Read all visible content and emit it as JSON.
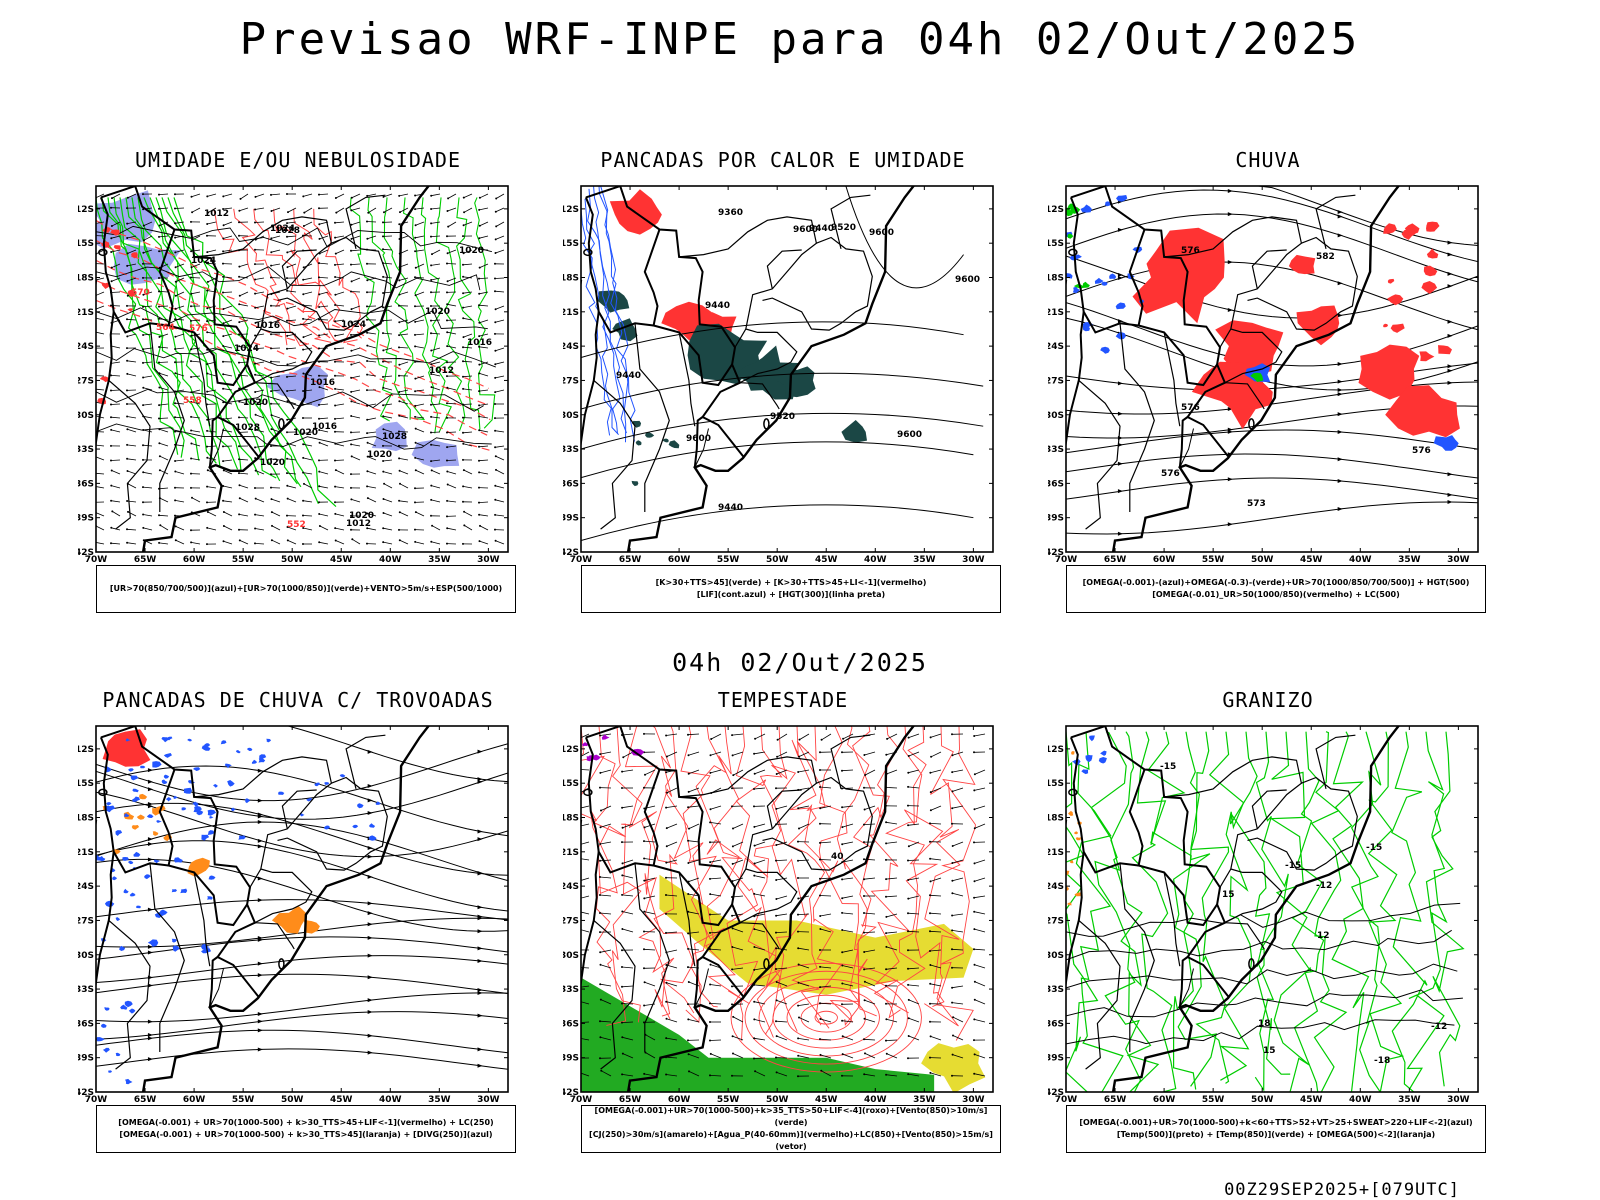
{
  "header": {
    "title": "Previsao WRF-INPE  para 04h 02/Out/2025"
  },
  "mid_label": "04h 02/Out/2025",
  "footer": "00Z29SEP2025+[079UTC]",
  "axes": {
    "lat_labels": [
      "12S",
      "15S",
      "18S",
      "21S",
      "24S",
      "27S",
      "30S",
      "33S",
      "36S",
      "39S",
      "42S"
    ],
    "lon_labels": [
      "70W",
      "65W",
      "60W",
      "55W",
      "50W",
      "45W",
      "40W",
      "35W",
      "30W"
    ]
  },
  "colors": {
    "humidity_blue": "#9fa6f0",
    "humidity_green": "#00cc00",
    "red_fill": "#ff3333",
    "dark_teal": "#1b4745",
    "blue_contour": "#2255ff",
    "orange": "#ff8c1a",
    "yellow": "#e6dc32",
    "green_fill": "#22aa22",
    "purple": "#aa00cc"
  },
  "panels": [
    {
      "id": "umidade",
      "title": "UMIDADE E/OU NEBULOSIDADE",
      "legend": [
        "[UR>70(850/700/500)](azul)+[UR>70(1000/850)](verde)+VENTO>5m/s+ESP(500/1000)"
      ],
      "contour_labels": [
        "1012",
        "1016",
        "1020",
        "1020",
        "1012",
        "1016",
        "1020",
        "1020",
        "1012",
        "1016",
        "1024",
        "1020",
        "1024",
        "1028",
        "1024",
        "1020",
        "1020",
        "1016",
        "1024",
        "1028",
        "1028",
        "576",
        "570",
        "564",
        "558",
        "552"
      ]
    },
    {
      "id": "pancadas_calor",
      "title": "PANCADAS POR CALOR E UMIDADE",
      "legend": [
        "[K>30+TTS>45](verde) + [K>30+TTS>45+LI<-1](vermelho)",
        "[LIF](cont.azul) + [HGT(300)](linha preta)"
      ],
      "contour_labels": [
        "9520",
        "9600",
        "9600",
        "9600",
        "9600",
        "9600",
        "9520",
        "9440",
        "9440",
        "9440",
        "9440",
        "9360"
      ]
    },
    {
      "id": "chuva",
      "title": "CHUVA",
      "legend": [
        "[OMEGA(-0.001)-(azul)+OMEGA(-0.3)-(verde)+UR>70(1000/850/700/500)] + HGT(500)",
        "[OMEGA(-0.01)_UR>50(1000/850)(vermelho) + LC(500)"
      ],
      "contour_labels": [
        "582",
        "576",
        "576",
        "576",
        "576",
        "573"
      ]
    },
    {
      "id": "trovoadas",
      "title": "PANCADAS DE CHUVA C/ TROVOADAS",
      "legend": [
        "[OMEGA(-0.001) + UR>70(1000-500) + k>30_TTS>45+LIF<-1](vermelho) + LC(250)",
        "[OMEGA(-0.001) + UR>70(1000-500) + k>30_TTS>45](laranja) + [DIVG(250)](azul)"
      ],
      "contour_labels": []
    },
    {
      "id": "tempestade",
      "title": "TEMPESTADE",
      "legend": [
        "[OMEGA(-0.001)+UR>70(1000-500)+k>35_TTS>50+LIF<-4](roxo)+[Vento(850)>10m/s](verde)",
        "[CJ(250)>30m/s](amarelo)+[Agua_P(40-60mm)](vermelho)+LC(850)+[Vento(850)>15m/s](vetor)"
      ],
      "contour_labels": [
        "40"
      ]
    },
    {
      "id": "granizo",
      "title": "GRANIZO",
      "legend": [
        "[OMEGA(-0.001)+UR>70(1000-500)+k<60+TTS>52+VT>25+SWEAT>220+LIF<-2](azul)",
        "[Temp(500)](preto) + [Temp(850)](verde) + [OMEGA(500)<-2](laranja)"
      ],
      "contour_labels": [
        "-12",
        "-12",
        "-15",
        "-15",
        "-15",
        "-18",
        "15",
        "15",
        "12",
        "18"
      ]
    }
  ]
}
